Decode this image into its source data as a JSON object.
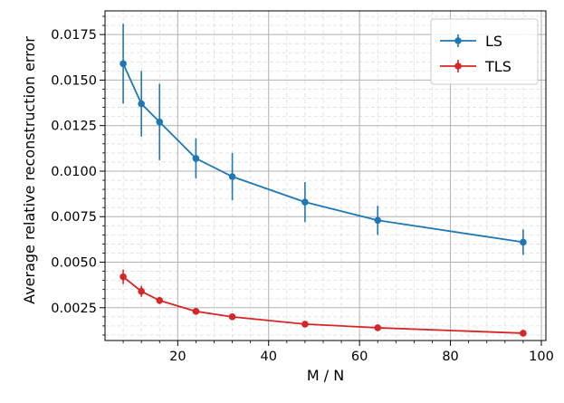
{
  "chart_data": {
    "type": "line",
    "title": "",
    "xlabel": "M / N",
    "ylabel": "Average relative reconstruction error",
    "xlim": [
      4,
      101
    ],
    "ylim": [
      0.0007,
      0.0188
    ],
    "x_ticks": [
      20,
      40,
      60,
      80,
      100
    ],
    "y_ticks": [
      0.0025,
      0.005,
      0.0075,
      0.01,
      0.0125,
      0.015,
      0.0175
    ],
    "y_tick_labels": [
      "0.0025",
      "0.0050",
      "0.0075",
      "0.0100",
      "0.0125",
      "0.0150",
      "0.0175"
    ],
    "grid": "major and minor (dashed minor)",
    "legend_position": "top-right",
    "x": [
      8,
      12,
      16,
      24,
      32,
      48,
      64,
      96
    ],
    "series": [
      {
        "name": "LS",
        "color": "#1f77b4",
        "values": [
          0.0159,
          0.0137,
          0.0127,
          0.0107,
          0.0097,
          0.0083,
          0.0073,
          0.0061
        ],
        "errors": [
          0.0022,
          0.0018,
          0.0021,
          0.0011,
          0.0013,
          0.0011,
          0.0008,
          0.0007
        ]
      },
      {
        "name": "TLS",
        "color": "#d62728",
        "values": [
          0.0042,
          0.0034,
          0.0029,
          0.0023,
          0.002,
          0.0016,
          0.0014,
          0.0011
        ],
        "errors": [
          0.0004,
          0.0003,
          0.0002,
          0.0001,
          0.0001,
          0.0001,
          0.0001,
          0.0001
        ]
      }
    ]
  }
}
